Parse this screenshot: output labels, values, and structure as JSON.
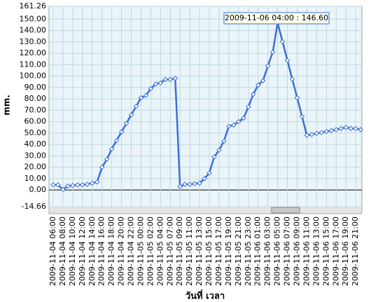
{
  "chart_data": {
    "type": "line",
    "y_label": "mm.",
    "x_label": "วันที่ เวลา",
    "annotation": "2009-11-06 04:00 : 146.60",
    "categories": [
      "2009-11-04 06:00",
      null,
      "2009-11-04 08:00",
      null,
      "2009-11-04 10:00",
      null,
      "2009-11-04 12:00",
      null,
      "2009-11-04 14:00",
      null,
      "2009-11-04 16:00",
      null,
      "2009-11-04 18:00",
      null,
      "2009-11-04 20:00",
      null,
      "2009-11-04 22:00",
      null,
      "2009-11-05 00:00",
      null,
      "2009-11-05 02:00",
      null,
      "2009-11-05 04:00",
      null,
      "2009-11-05 07:00",
      null,
      "2009-11-05 09:00",
      null,
      "2009-11-05 11:00",
      null,
      "2009-11-05 13:00",
      null,
      "2009-11-05 15:00",
      null,
      "2009-11-05 17:00",
      null,
      "2009-11-05 19:00",
      null,
      "2009-11-05 21:00",
      null,
      "2009-11-05 23:00",
      null,
      "2009-11-06 01:00",
      null,
      "2009-11-06 03:00",
      null,
      "2009-11-06 05:00",
      null,
      "2009-11-06 07:00",
      null,
      "2009-11-06 09:00",
      null,
      "2009-11-06 11:00",
      null,
      "2009-11-06 13:00",
      null,
      "2009-11-06 15:00",
      null,
      "2009-11-06 17:00",
      null,
      "2009-11-06 19:00",
      null,
      "2009-11-06 21:00",
      null
    ],
    "series": [
      {
        "color": "#3a6fd8",
        "values": [
          4.5,
          4.5,
          0.5,
          3.5,
          4,
          4.5,
          4.5,
          5,
          6,
          7,
          20,
          27,
          36,
          43.5,
          51,
          58.5,
          66,
          73.5,
          81,
          83,
          89,
          93,
          94,
          97,
          97,
          98,
          3,
          5,
          5,
          5.5,
          6,
          10,
          15,
          29,
          35,
          43,
          56,
          57,
          60,
          63,
          73,
          84,
          92,
          96,
          109,
          121,
          146.6,
          130.2,
          113.7,
          97.3,
          80.9,
          64.4,
          48,
          48.8,
          49.7,
          50.5,
          51.3,
          52.2,
          53,
          54,
          55,
          54,
          54,
          53
        ]
      }
    ],
    "ylim": [
      -14.66,
      161.26
    ],
    "yticks": [
      -14.66,
      {
        "value": 0,
        "label": "0.00"
      },
      {
        "value": 10,
        "label": "10.00"
      },
      {
        "value": 20,
        "label": "20.00"
      },
      {
        "value": 30,
        "label": "30.00"
      },
      {
        "value": 40,
        "label": "40.00"
      },
      {
        "value": 50,
        "label": "50.00"
      },
      {
        "value": 60,
        "label": "60.00"
      },
      {
        "value": 70,
        "label": "70.00"
      },
      {
        "value": 80,
        "label": "80.00"
      },
      {
        "value": 90,
        "label": "90.00"
      },
      {
        "value": 100,
        "label": "100.00"
      },
      {
        "value": 110,
        "label": "110.00"
      },
      {
        "value": 120,
        "label": "120.00"
      },
      {
        "value": 130,
        "label": "130.00"
      },
      {
        "value": 140,
        "label": "140.00"
      },
      {
        "value": 150,
        "label": "150.00"
      },
      161.26
    ],
    "grid": true
  }
}
